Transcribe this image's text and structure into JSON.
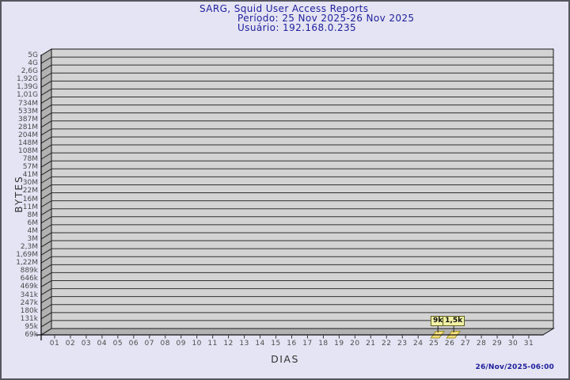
{
  "chart_data": {
    "type": "bar",
    "scale_y": "log",
    "title": "SARG, Squid User Access Reports",
    "period": "Período: 25 Nov 2025-26 Nov 2025",
    "user": "Usuário: 192.168.0.235",
    "xlabel": "DIAS",
    "ylabel": "BYTES",
    "x_tick_labels": [
      "01",
      "02",
      "03",
      "04",
      "05",
      "06",
      "07",
      "08",
      "09",
      "10",
      "11",
      "12",
      "13",
      "14",
      "15",
      "16",
      "17",
      "18",
      "19",
      "20",
      "21",
      "22",
      "23",
      "24",
      "25",
      "26",
      "27",
      "28",
      "29",
      "30",
      "31"
    ],
    "y_tick_labels": [
      "5G",
      "4G",
      "2,6G",
      "1,92G",
      "1,39G",
      "1,01G",
      "734M",
      "533M",
      "387M",
      "281M",
      "204M",
      "148M",
      "108M",
      "78M",
      "57M",
      "41M",
      "30M",
      "22M",
      "16M",
      "11M",
      "8M",
      "6M",
      "4M",
      "3M",
      "2,3M",
      "1,69M",
      "1,22M",
      "889k",
      "646k",
      "469k",
      "341k",
      "247k",
      "180k",
      "131k",
      "95k",
      "69k"
    ],
    "points": [
      {
        "day": "25",
        "label": "9k",
        "bytes": 9000
      },
      {
        "day": "26",
        "label": "1,5k",
        "bytes": 1500
      }
    ],
    "footer_timestamp": "26/Nov/2025-06:00",
    "legend": "none",
    "grid": "horizontal",
    "colors": {
      "page-bg": "#e4e4f5",
      "title-text": "#1e1e9c",
      "timestamp-text": "#1e1e9c",
      "plot-face": "#d3d3d3",
      "plot-wall": "#b2b2b2",
      "grid-line": "#2f2f2f",
      "tick-text": "#4b4b4b",
      "bar-fill": "#f6dd7d",
      "bar-edge": "#8a8000",
      "point-label-bg": "#f2f2a6",
      "point-label-border": "#5c5c20"
    }
  }
}
